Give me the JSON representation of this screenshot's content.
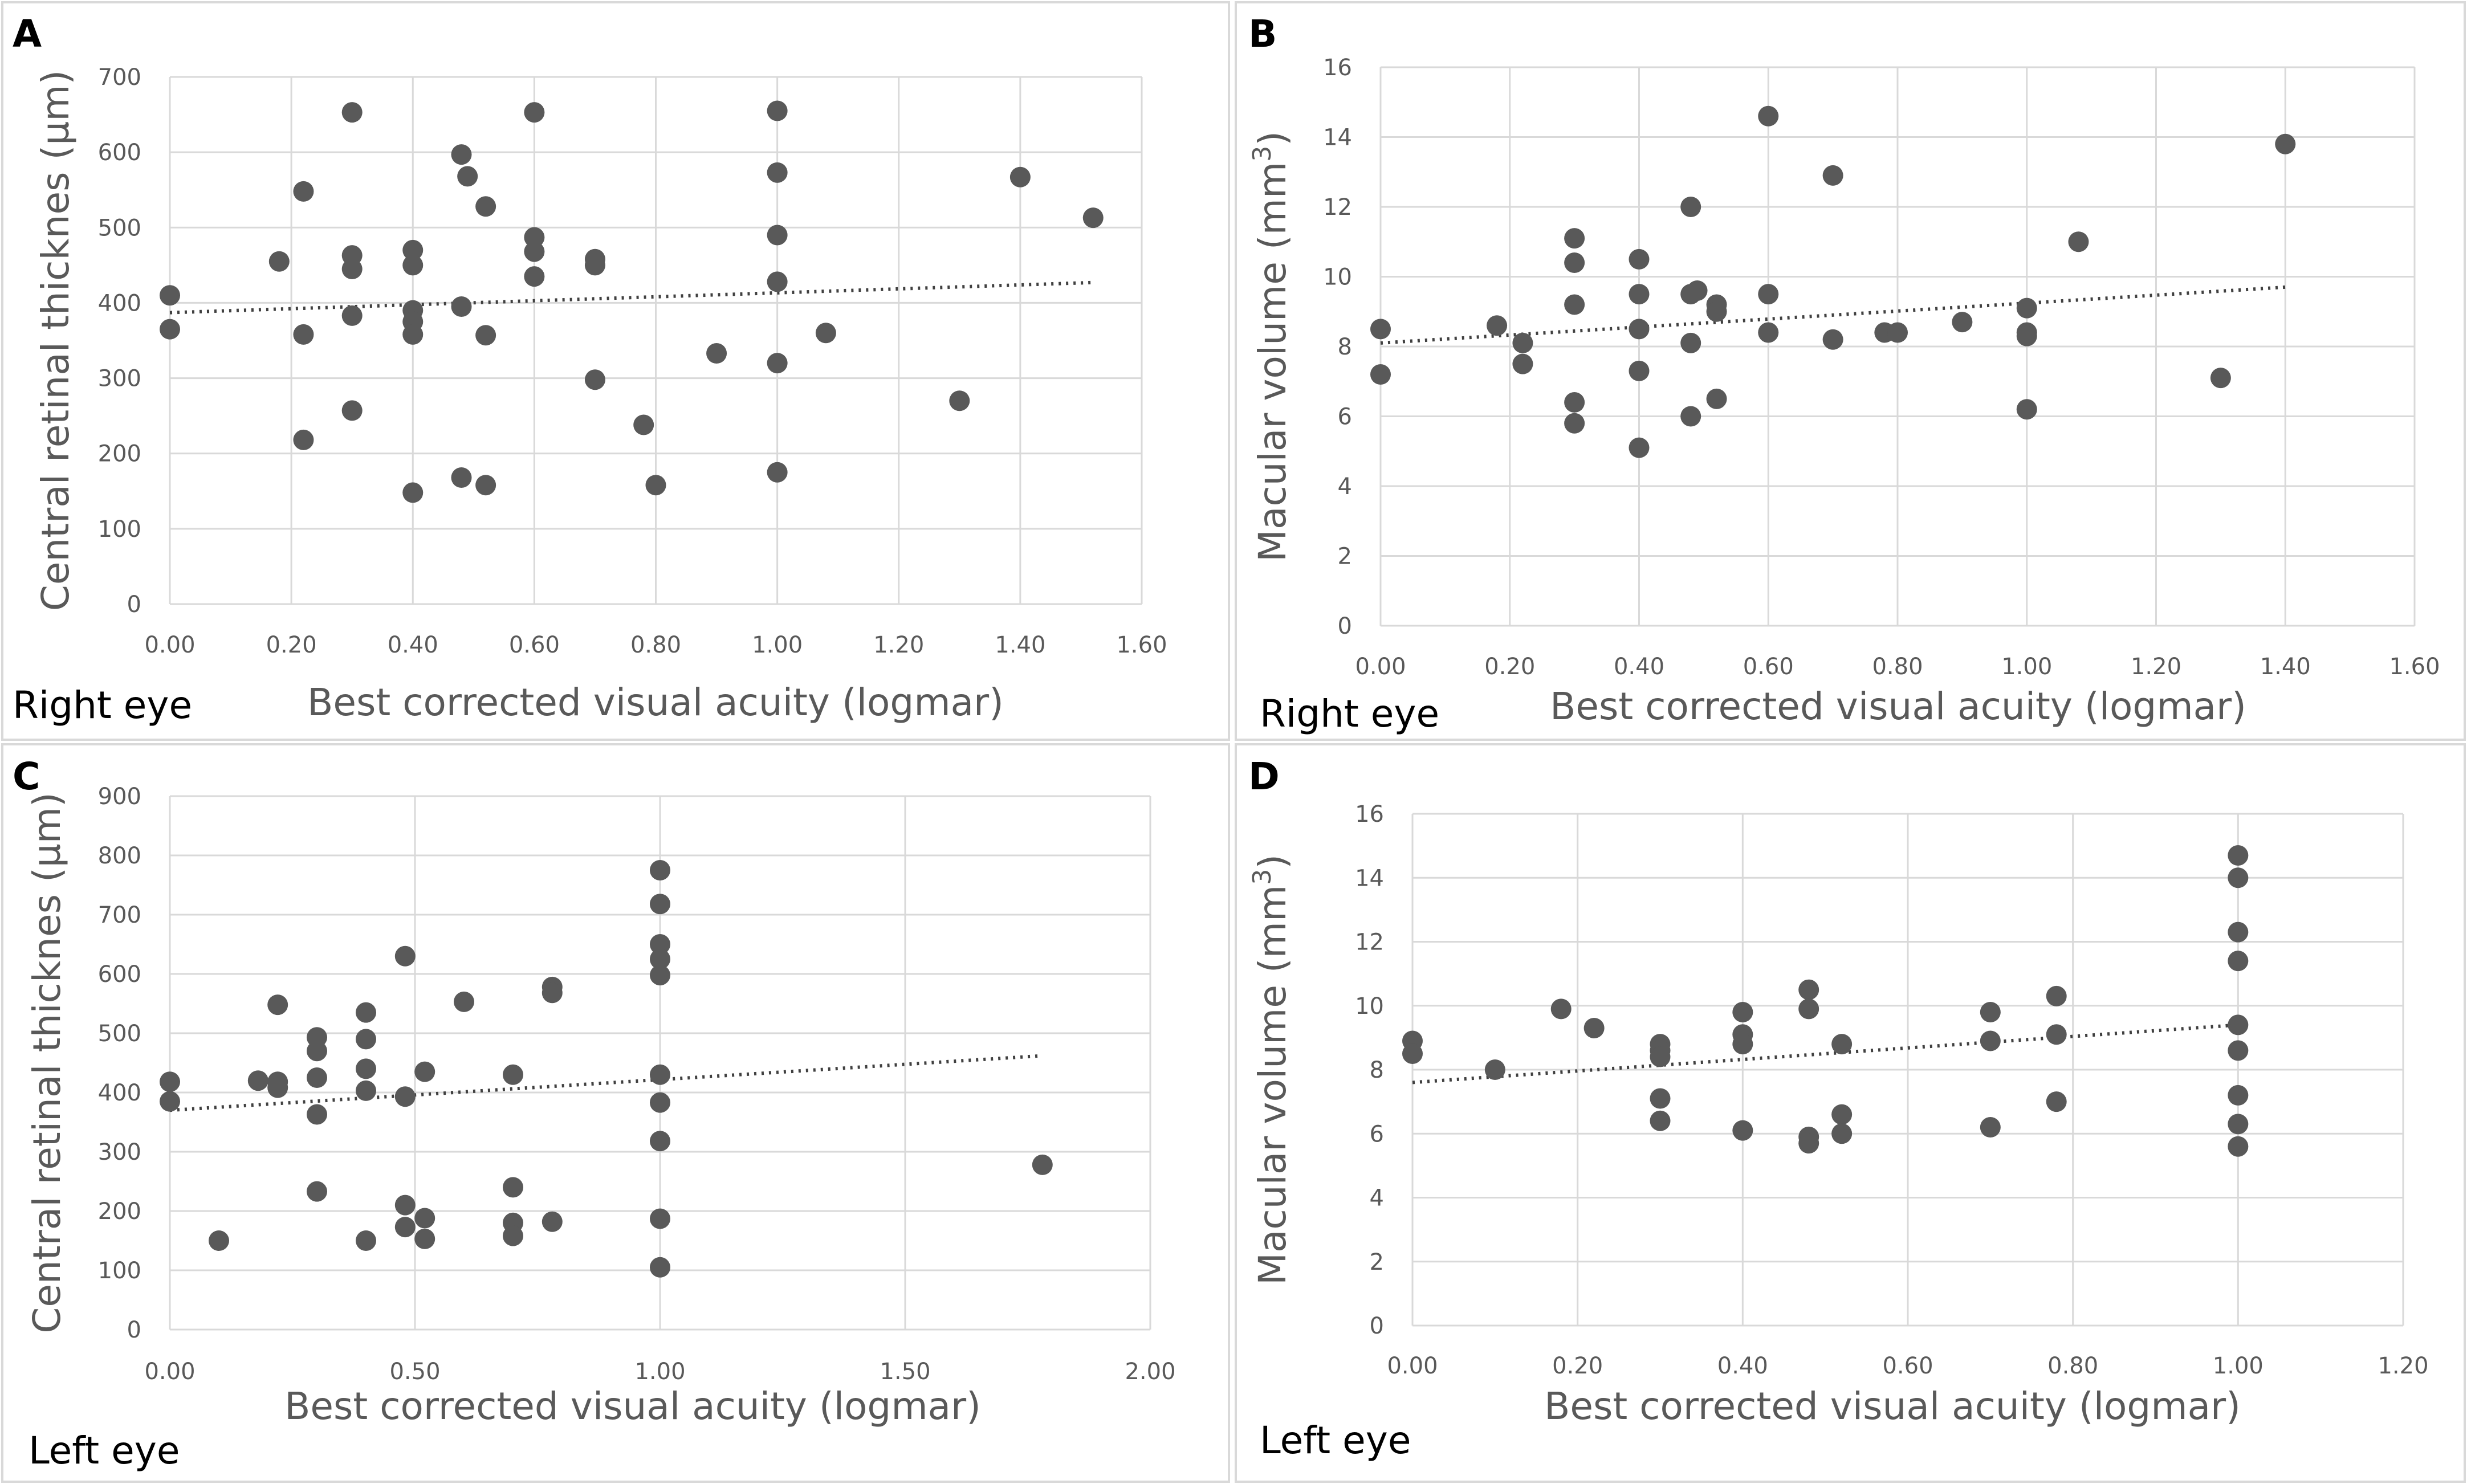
{
  "chart_data": [
    {
      "type": "scatter",
      "panel": "A",
      "eye_label": "Right eye",
      "xlabel": "Best corrected visual acuity (logmar)",
      "ylabel": "Central retinal thicknes (µm)",
      "ylabel_sup": "",
      "ylabel_end": "",
      "xlim": [
        0,
        1.6
      ],
      "ylim": [
        0,
        700
      ],
      "xticks": [
        0,
        0.2,
        0.4,
        0.6,
        0.8,
        1.0,
        1.2,
        1.4,
        1.6
      ],
      "xtick_labels": [
        "0.00",
        "0.20",
        "0.40",
        "0.60",
        "0.80",
        "1.00",
        "1.20",
        "1.40",
        "1.60"
      ],
      "yticks": [
        0,
        100,
        200,
        300,
        400,
        500,
        600,
        700
      ],
      "ytick_labels": [
        "0",
        "100",
        "200",
        "300",
        "400",
        "500",
        "600",
        "700"
      ],
      "trendline": {
        "x": [
          0,
          1.52
        ],
        "y": [
          387,
          427
        ]
      },
      "points": [
        [
          0.0,
          410
        ],
        [
          0.0,
          365
        ],
        [
          0.18,
          455
        ],
        [
          0.22,
          548
        ],
        [
          0.22,
          358
        ],
        [
          0.22,
          218
        ],
        [
          0.3,
          653
        ],
        [
          0.3,
          463
        ],
        [
          0.3,
          445
        ],
        [
          0.3,
          383
        ],
        [
          0.3,
          257
        ],
        [
          0.4,
          470
        ],
        [
          0.4,
          450
        ],
        [
          0.4,
          390
        ],
        [
          0.4,
          375
        ],
        [
          0.4,
          358
        ],
        [
          0.4,
          148
        ],
        [
          0.48,
          597
        ],
        [
          0.49,
          568
        ],
        [
          0.48,
          395
        ],
        [
          0.48,
          168
        ],
        [
          0.52,
          528
        ],
        [
          0.52,
          357
        ],
        [
          0.52,
          158
        ],
        [
          0.6,
          653
        ],
        [
          0.6,
          487
        ],
        [
          0.6,
          468
        ],
        [
          0.6,
          435
        ],
        [
          0.7,
          458
        ],
        [
          0.7,
          450
        ],
        [
          0.7,
          298
        ],
        [
          0.78,
          238
        ],
        [
          0.8,
          158
        ],
        [
          0.9,
          333
        ],
        [
          1.0,
          655
        ],
        [
          1.0,
          573
        ],
        [
          1.0,
          490
        ],
        [
          1.0,
          428
        ],
        [
          1.0,
          320
        ],
        [
          1.0,
          175
        ],
        [
          1.08,
          360
        ],
        [
          1.3,
          270
        ],
        [
          1.4,
          567
        ],
        [
          1.52,
          513
        ]
      ]
    },
    {
      "type": "scatter",
      "panel": "B",
      "eye_label": "Right eye",
      "xlabel": "Best corrected visual acuity (logmar)",
      "ylabel": "Macular volume (mm",
      "ylabel_sup": "3",
      "ylabel_end": ")",
      "xlim": [
        0,
        1.6
      ],
      "ylim": [
        0,
        16
      ],
      "xticks": [
        0,
        0.2,
        0.4,
        0.6,
        0.8,
        1.0,
        1.2,
        1.4,
        1.6
      ],
      "xtick_labels": [
        "0.00",
        "0.20",
        "0.40",
        "0.60",
        "0.80",
        "1.00",
        "1.20",
        "1.40",
        "1.60"
      ],
      "yticks": [
        0,
        2,
        4,
        6,
        8,
        10,
        12,
        14,
        16
      ],
      "ytick_labels": [
        "0",
        "2",
        "4",
        "6",
        "8",
        "10",
        "12",
        "14",
        "16"
      ],
      "trendline": {
        "x": [
          0,
          1.4
        ],
        "y": [
          8.1,
          9.7
        ]
      },
      "points": [
        [
          0.0,
          8.5
        ],
        [
          0.0,
          7.2
        ],
        [
          0.18,
          8.6
        ],
        [
          0.22,
          8.1
        ],
        [
          0.22,
          7.5
        ],
        [
          0.3,
          11.1
        ],
        [
          0.3,
          10.4
        ],
        [
          0.3,
          9.2
        ],
        [
          0.3,
          6.4
        ],
        [
          0.3,
          5.8
        ],
        [
          0.4,
          10.5
        ],
        [
          0.4,
          9.5
        ],
        [
          0.4,
          8.5
        ],
        [
          0.4,
          7.3
        ],
        [
          0.4,
          5.1
        ],
        [
          0.48,
          12.0
        ],
        [
          0.48,
          9.5
        ],
        [
          0.49,
          9.6
        ],
        [
          0.48,
          8.1
        ],
        [
          0.48,
          6.0
        ],
        [
          0.52,
          9.2
        ],
        [
          0.52,
          9.0
        ],
        [
          0.52,
          6.5
        ],
        [
          0.6,
          14.6
        ],
        [
          0.6,
          9.5
        ],
        [
          0.6,
          8.4
        ],
        [
          0.7,
          12.9
        ],
        [
          0.7,
          8.2
        ],
        [
          0.78,
          8.4
        ],
        [
          0.8,
          8.4
        ],
        [
          0.9,
          8.7
        ],
        [
          1.0,
          9.1
        ],
        [
          1.0,
          8.4
        ],
        [
          1.0,
          8.3
        ],
        [
          1.0,
          6.2
        ],
        [
          1.08,
          11.0
        ],
        [
          1.3,
          7.1
        ],
        [
          1.4,
          13.8
        ]
      ]
    },
    {
      "type": "scatter",
      "panel": "C",
      "eye_label": "Left eye",
      "xlabel": "Best corrected visual acuity (logmar)",
      "ylabel": "Central retinal thicknes (µm)",
      "ylabel_sup": "",
      "ylabel_end": "",
      "xlim": [
        0,
        2.0
      ],
      "ylim": [
        0,
        900
      ],
      "xticks": [
        0,
        0.5,
        1.0,
        1.5,
        2.0
      ],
      "xtick_labels": [
        "0.00",
        "0.50",
        "1.00",
        "1.50",
        "2.00"
      ],
      "yticks": [
        0,
        100,
        200,
        300,
        400,
        500,
        600,
        700,
        800,
        900
      ],
      "ytick_labels": [
        "0",
        "100",
        "200",
        "300",
        "400",
        "500",
        "600",
        "700",
        "800",
        "900"
      ],
      "trendline": {
        "x": [
          0,
          1.78
        ],
        "y": [
          370,
          462
        ]
      },
      "points": [
        [
          0.0,
          418
        ],
        [
          0.0,
          385
        ],
        [
          0.1,
          150
        ],
        [
          0.18,
          420
        ],
        [
          0.22,
          548
        ],
        [
          0.22,
          418
        ],
        [
          0.22,
          408
        ],
        [
          0.3,
          493
        ],
        [
          0.3,
          470
        ],
        [
          0.3,
          425
        ],
        [
          0.3,
          363
        ],
        [
          0.3,
          233
        ],
        [
          0.4,
          535
        ],
        [
          0.4,
          490
        ],
        [
          0.4,
          440
        ],
        [
          0.4,
          403
        ],
        [
          0.4,
          150
        ],
        [
          0.48,
          630
        ],
        [
          0.48,
          393
        ],
        [
          0.48,
          210
        ],
        [
          0.48,
          173
        ],
        [
          0.52,
          435
        ],
        [
          0.52,
          188
        ],
        [
          0.52,
          153
        ],
        [
          0.6,
          553
        ],
        [
          0.7,
          430
        ],
        [
          0.7,
          240
        ],
        [
          0.7,
          180
        ],
        [
          0.7,
          158
        ],
        [
          0.78,
          578
        ],
        [
          0.78,
          568
        ],
        [
          0.78,
          182
        ],
        [
          1.0,
          775
        ],
        [
          1.0,
          718
        ],
        [
          1.0,
          650
        ],
        [
          1.0,
          625
        ],
        [
          1.0,
          598
        ],
        [
          1.0,
          430
        ],
        [
          1.0,
          383
        ],
        [
          1.0,
          318
        ],
        [
          1.0,
          187
        ],
        [
          1.0,
          105
        ],
        [
          1.78,
          278
        ]
      ]
    },
    {
      "type": "scatter",
      "panel": "D",
      "eye_label": "Left eye",
      "xlabel": "Best corrected visual acuity (logmar)",
      "ylabel": "Macular volume (mm",
      "ylabel_sup": "3",
      "ylabel_end": ")",
      "xlim": [
        0,
        1.2
      ],
      "ylim": [
        0,
        16
      ],
      "xticks": [
        0,
        0.2,
        0.4,
        0.6,
        0.8,
        1.0,
        1.2
      ],
      "xtick_labels": [
        "0.00",
        "0.20",
        "0.40",
        "0.60",
        "0.80",
        "1.00",
        "1.20"
      ],
      "yticks": [
        0,
        2,
        4,
        6,
        8,
        10,
        12,
        14,
        16
      ],
      "ytick_labels": [
        "0",
        "2",
        "4",
        "6",
        "8",
        "10",
        "12",
        "14",
        "16"
      ],
      "trendline": {
        "x": [
          0,
          1.0
        ],
        "y": [
          7.6,
          9.4
        ]
      },
      "points": [
        [
          0.0,
          8.9
        ],
        [
          0.0,
          8.5
        ],
        [
          0.1,
          8.0
        ],
        [
          0.18,
          9.9
        ],
        [
          0.22,
          9.3
        ],
        [
          0.3,
          8.8
        ],
        [
          0.3,
          8.6
        ],
        [
          0.3,
          8.4
        ],
        [
          0.3,
          7.1
        ],
        [
          0.3,
          6.4
        ],
        [
          0.4,
          9.8
        ],
        [
          0.4,
          9.1
        ],
        [
          0.4,
          8.8
        ],
        [
          0.4,
          6.1
        ],
        [
          0.48,
          10.5
        ],
        [
          0.48,
          9.9
        ],
        [
          0.48,
          5.9
        ],
        [
          0.48,
          5.7
        ],
        [
          0.52,
          8.8
        ],
        [
          0.52,
          6.6
        ],
        [
          0.52,
          6.0
        ],
        [
          0.7,
          9.8
        ],
        [
          0.7,
          8.9
        ],
        [
          0.7,
          6.2
        ],
        [
          0.78,
          10.3
        ],
        [
          0.78,
          9.1
        ],
        [
          0.78,
          7.0
        ],
        [
          1.0,
          14.7
        ],
        [
          1.0,
          14.0
        ],
        [
          1.0,
          12.3
        ],
        [
          1.0,
          11.4
        ],
        [
          1.0,
          9.4
        ],
        [
          1.0,
          8.6
        ],
        [
          1.0,
          7.2
        ],
        [
          1.0,
          6.3
        ],
        [
          1.0,
          5.6
        ]
      ]
    }
  ]
}
